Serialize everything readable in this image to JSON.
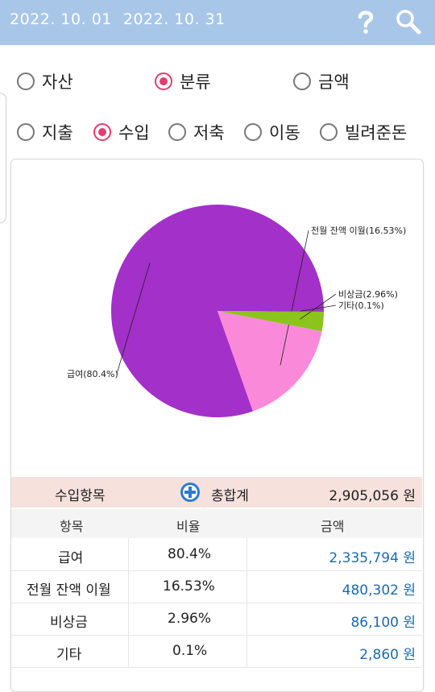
{
  "header": {
    "start_date": "2022. 10. 01",
    "end_date": "2022. 10. 31",
    "icons": [
      "help-icon",
      "search-icon"
    ]
  },
  "group_options": [
    {
      "label": "자산",
      "selected": false
    },
    {
      "label": "분류",
      "selected": true
    },
    {
      "label": "금액",
      "selected": false
    }
  ],
  "type_options": [
    {
      "label": "지출",
      "selected": false
    },
    {
      "label": "수입",
      "selected": true
    },
    {
      "label": "저축",
      "selected": false
    },
    {
      "label": "이동",
      "selected": false
    },
    {
      "label": "빌려준돈",
      "selected": false
    }
  ],
  "colors": {
    "accent": "#e33d6f",
    "header": "#a8c6e8",
    "amount": "#1b6ab0",
    "summary_bg": "#f6e1dc"
  },
  "chart_data": {
    "type": "pie",
    "slices": [
      {
        "label": "급여(80.4%)",
        "value": 80.4,
        "color": "#a330c9"
      },
      {
        "label": "전월 잔액 이월(16.53%)",
        "value": 16.53,
        "color": "#fa8ad9"
      },
      {
        "label": "비상금(2.96%)",
        "value": 2.96,
        "color": "#8bc41c"
      },
      {
        "label": "기타(0.1%)",
        "value": 0.1,
        "color": "#3d4fd4"
      }
    ]
  },
  "summary": {
    "label": "수입항목",
    "total_label": "총합계",
    "total_value": "2,905,056 원"
  },
  "table": {
    "headers": [
      "항목",
      "비율",
      "금액"
    ],
    "rows": [
      {
        "item": "급여",
        "ratio": "80.4%",
        "amount": "2,335,794 원"
      },
      {
        "item": "전월 잔액 이월",
        "ratio": "16.53%",
        "amount": "480,302 원"
      },
      {
        "item": "비상금",
        "ratio": "2.96%",
        "amount": "86,100 원"
      },
      {
        "item": "기타",
        "ratio": "0.1%",
        "amount": "2,860 원"
      }
    ]
  }
}
